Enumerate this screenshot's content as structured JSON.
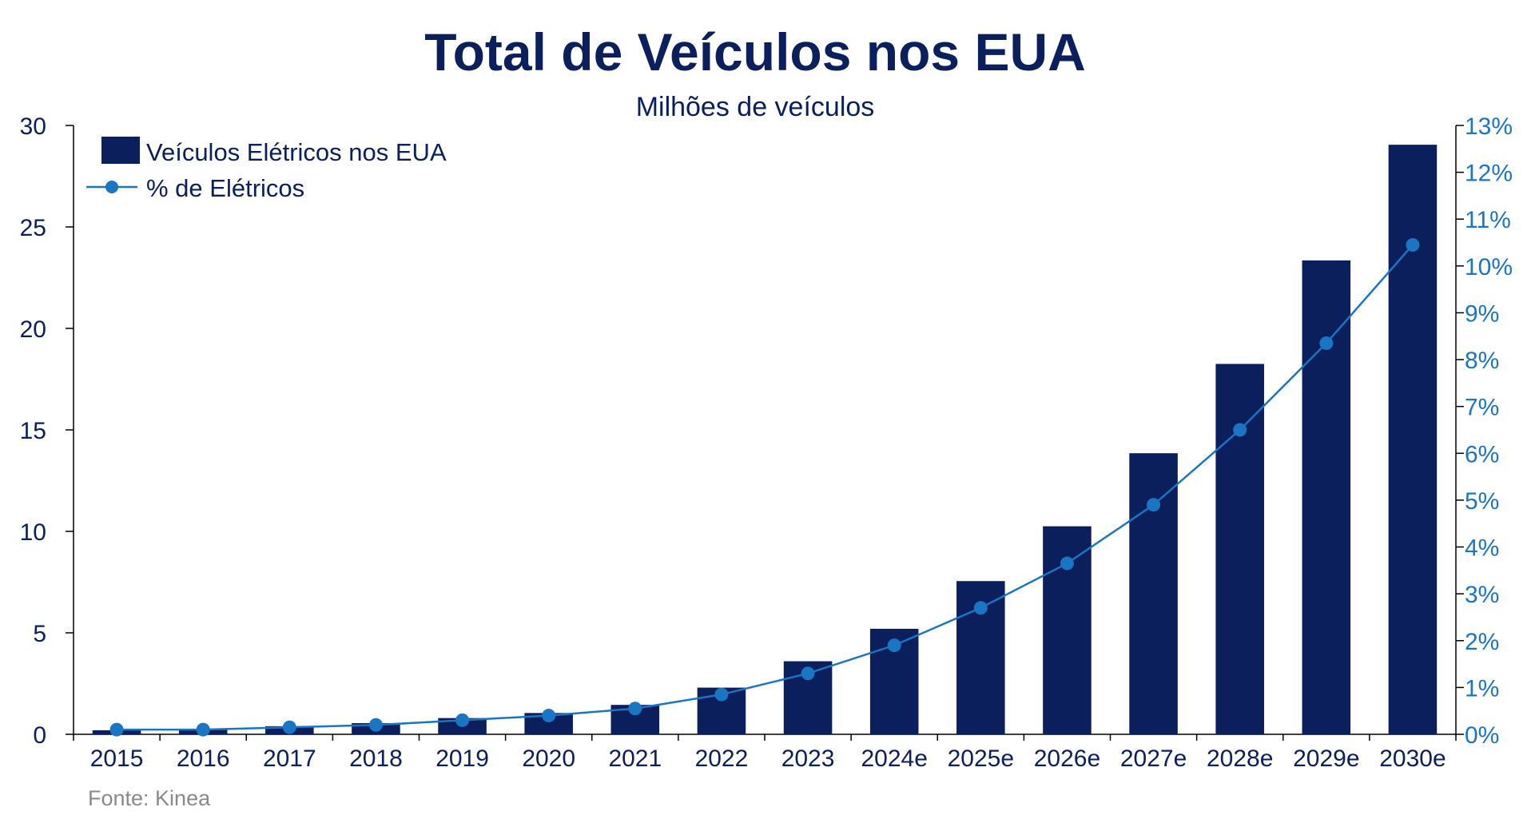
{
  "colors": {
    "bar": "#0a1f5c",
    "line": "#1a75c2",
    "title": "#0a1f5c",
    "left_axis_text": "#0a1f5c",
    "right_axis_text": "#1a75c2",
    "source_text": "#8a8a8a"
  },
  "chart_data": {
    "type": "bar",
    "title": "Total de Veículos nos EUA",
    "subtitle": "Milhões de veículos",
    "source": "Fonte: Kinea",
    "categories": [
      "2015",
      "2016",
      "2017",
      "2018",
      "2019",
      "2020",
      "2021",
      "2022",
      "2023",
      "2024e",
      "2025e",
      "2026e",
      "2027e",
      "2028e",
      "2029e",
      "2030e"
    ],
    "series": [
      {
        "name": "Veículos Elétricos nos EUA",
        "type": "bar",
        "axis": "left",
        "values": [
          0.2,
          0.25,
          0.4,
          0.55,
          0.8,
          1.05,
          1.45,
          2.3,
          3.6,
          5.2,
          7.55,
          10.25,
          13.85,
          18.25,
          23.35,
          29.05
        ]
      },
      {
        "name": "% de Elétricos",
        "type": "line",
        "axis": "right",
        "values": [
          0.1,
          0.1,
          0.15,
          0.2,
          0.3,
          0.4,
          0.55,
          0.85,
          1.3,
          1.9,
          2.7,
          3.65,
          4.9,
          6.5,
          8.35,
          10.45
        ]
      }
    ],
    "y_left": {
      "min": 0,
      "max": 30,
      "ticks": [
        0,
        5,
        10,
        15,
        20,
        25,
        30
      ]
    },
    "y_right": {
      "min": 0,
      "max": 13,
      "unit": "%",
      "ticks": [
        0,
        1,
        2,
        3,
        4,
        5,
        6,
        7,
        8,
        9,
        10,
        11,
        12,
        13
      ]
    },
    "legend": {
      "placement": "top-left"
    },
    "grid": false
  }
}
